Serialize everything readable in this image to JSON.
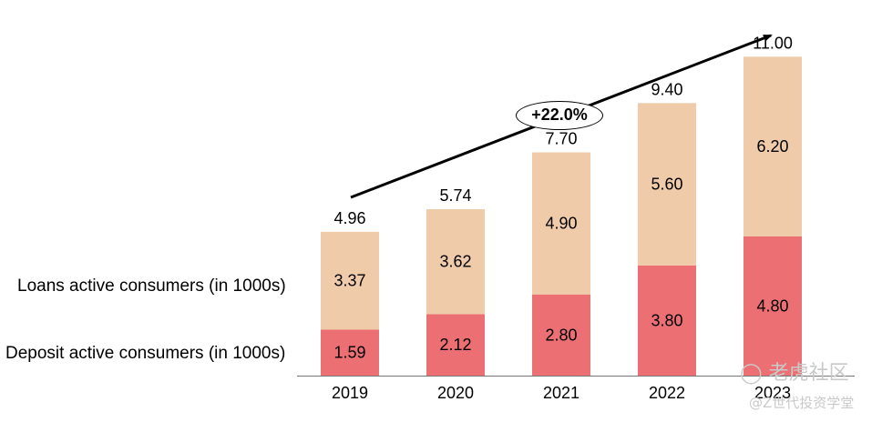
{
  "chart_data": {
    "type": "bar",
    "stacked": true,
    "categories": [
      "2019",
      "2020",
      "2021",
      "2022",
      "2023"
    ],
    "series": [
      {
        "name": "Deposit active consumers (in 1000s)",
        "values": [
          1.59,
          2.12,
          2.8,
          3.8,
          4.8
        ],
        "color": "#ec7073"
      },
      {
        "name": "Loans active consumers (in 1000s)",
        "values": [
          3.37,
          3.62,
          4.9,
          5.6,
          6.2
        ],
        "color": "#f0cbaa"
      }
    ],
    "totals": [
      4.96,
      5.74,
      7.7,
      9.4,
      11.0
    ],
    "segment_labels": {
      "deposit": [
        "1.59",
        "2.12",
        "2.80",
        "3.80",
        "4.80"
      ],
      "loans": [
        "3.37",
        "3.62",
        "4.90",
        "5.60",
        "6.20"
      ]
    },
    "total_labels": [
      "4.96",
      "5.74",
      "7.70",
      "9.40",
      "11.00"
    ],
    "ylim": [
      0,
      11.7
    ],
    "annotation": "+22.0%",
    "grid": false,
    "legend": "left"
  },
  "watermark": {
    "main": "老虎社区",
    "sub": "@Z世代投资学堂"
  }
}
